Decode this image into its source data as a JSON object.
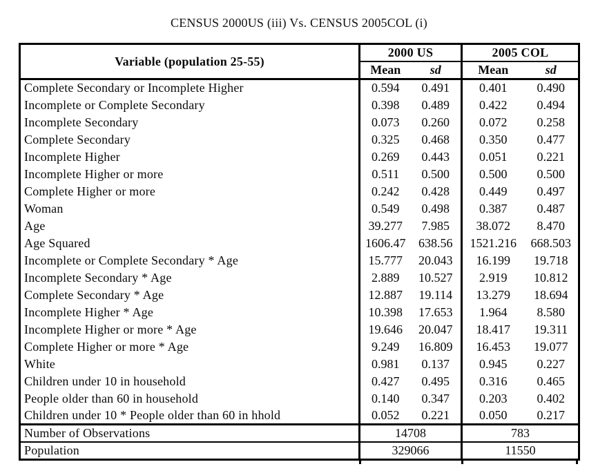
{
  "page": {
    "title": "CENSUS 2000US (iii) Vs. CENSUS 2005COL (i)"
  },
  "table": {
    "variable_header": "Variable (population 25-55)",
    "groups": [
      {
        "label": "2000 US",
        "columns": [
          "Mean",
          "sd"
        ]
      },
      {
        "label": "2005 COL",
        "columns": [
          "Mean",
          "sd"
        ]
      }
    ],
    "rows": [
      {
        "label": "Complete Secondary or Incomplete Higher",
        "values": [
          "0.594",
          "0.491",
          "0.401",
          "0.490"
        ]
      },
      {
        "label": "Incomplete or Complete Secondary",
        "values": [
          "0.398",
          "0.489",
          "0.422",
          "0.494"
        ]
      },
      {
        "label": "Incomplete Secondary",
        "values": [
          "0.073",
          "0.260",
          "0.072",
          "0.258"
        ]
      },
      {
        "label": "Complete Secondary",
        "values": [
          "0.325",
          "0.468",
          "0.350",
          "0.477"
        ]
      },
      {
        "label": "Incomplete Higher",
        "values": [
          "0.269",
          "0.443",
          "0.051",
          "0.221"
        ]
      },
      {
        "label": "Incomplete Higher or more",
        "values": [
          "0.511",
          "0.500",
          "0.500",
          "0.500"
        ]
      },
      {
        "label": "Complete Higher or more",
        "values": [
          "0.242",
          "0.428",
          "0.449",
          "0.497"
        ]
      },
      {
        "label": "Woman",
        "values": [
          "0.549",
          "0.498",
          "0.387",
          "0.487"
        ]
      },
      {
        "label": "Age",
        "values": [
          "39.277",
          "7.985",
          "38.072",
          "8.470"
        ]
      },
      {
        "label": "Age Squared",
        "values": [
          "1606.47",
          "638.56",
          "1521.216",
          "668.503"
        ]
      },
      {
        "label": "Incomplete or Complete Secondary * Age",
        "values": [
          "15.777",
          "20.043",
          "16.199",
          "19.718"
        ]
      },
      {
        "label": "Incomplete Secondary * Age",
        "values": [
          "2.889",
          "10.527",
          "2.919",
          "10.812"
        ]
      },
      {
        "label": "Complete Secondary * Age",
        "values": [
          "12.887",
          "19.114",
          "13.279",
          "18.694"
        ]
      },
      {
        "label": "Incomplete Higher * Age",
        "values": [
          "10.398",
          "17.653",
          "1.964",
          "8.580"
        ]
      },
      {
        "label": "Incomplete Higher or more * Age",
        "values": [
          "19.646",
          "20.047",
          "18.417",
          "19.311"
        ]
      },
      {
        "label": "Complete Higher or more * Age",
        "values": [
          "9.249",
          "16.809",
          "16.453",
          "19.077"
        ]
      },
      {
        "label": "White",
        "values": [
          "0.981",
          "0.137",
          "0.945",
          "0.227"
        ]
      },
      {
        "label": "Children under 10 in household",
        "values": [
          "0.427",
          "0.495",
          "0.316",
          "0.465"
        ]
      },
      {
        "label": "People older than 60 in household",
        "values": [
          "0.140",
          "0.347",
          "0.203",
          "0.402"
        ]
      },
      {
        "label": "Children under 10 * People older than 60 in hhold",
        "values": [
          "0.052",
          "0.221",
          "0.050",
          "0.217"
        ]
      }
    ],
    "summary_rows": [
      {
        "label": "Number of Observations",
        "values": [
          "14708",
          "783"
        ]
      },
      {
        "label": "Population",
        "values": [
          "329066",
          "11550"
        ]
      }
    ]
  }
}
